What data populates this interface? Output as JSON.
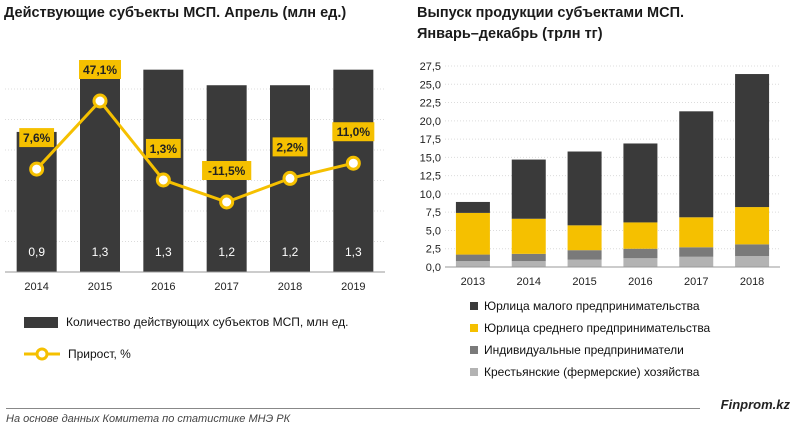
{
  "chart_data": [
    {
      "type": "bar",
      "title": "Действующие субъекты МСП. Апрель (млн ед.)",
      "categories": [
        "2014",
        "2015",
        "2016",
        "2017",
        "2018",
        "2019"
      ],
      "series": [
        {
          "name": "Количество действующих субъектов МСП, млн ед.",
          "type": "bar",
          "values": [
            0.9,
            1.3,
            1.3,
            1.2,
            1.2,
            1.3
          ],
          "labels": [
            "0,9",
            "1,3",
            "1,3",
            "1,2",
            "1,2",
            "1,3"
          ],
          "color": "#3a3a3a"
        },
        {
          "name": "Прирост, %",
          "type": "line",
          "values": [
            7.6,
            47.1,
            1.3,
            -11.5,
            2.2,
            11.0
          ],
          "labels": [
            "7,6%",
            "47,1%",
            "1,3%",
            "-11,5%",
            "2,2%",
            "11,0%"
          ],
          "color": "#f5c000"
        }
      ],
      "grid": true
    },
    {
      "type": "bar",
      "stacked": true,
      "title": "Выпуск продукции субъектами МСП. Январь–декабрь (трлн тг)",
      "categories": [
        "2013",
        "2014",
        "2015",
        "2016",
        "2017",
        "2018"
      ],
      "ylim": [
        0,
        27.5
      ],
      "yticks": [
        "0,0",
        "2,5",
        "5,0",
        "7,5",
        "10,0",
        "12,5",
        "15,0",
        "17,5",
        "20,0",
        "22,5",
        "25,0",
        "27,5"
      ],
      "series": [
        {
          "name": "Крестьянские (фермерские) хозяйства",
          "values": [
            0.8,
            0.8,
            1.0,
            1.2,
            1.4,
            1.5
          ],
          "color": "#b3b3b3"
        },
        {
          "name": "Индивидуальные предприниматели",
          "values": [
            0.9,
            1.0,
            1.3,
            1.3,
            1.3,
            1.6
          ],
          "color": "#7a7a7a"
        },
        {
          "name": "Юрлица среднего предпринимательства",
          "values": [
            5.7,
            4.8,
            3.4,
            3.6,
            4.1,
            5.1
          ],
          "color": "#f5c000"
        },
        {
          "name": "Юрлица малого предпринимательства",
          "values": [
            1.5,
            8.1,
            10.1,
            10.8,
            14.5,
            18.2
          ],
          "color": "#3a3a3a"
        }
      ],
      "legend_order": [
        "Юрлица малого предпринимательства",
        "Юрлица среднего предпринимательства",
        "Индивидуальные предприниматели",
        "Крестьянские (фермерские) хозяйства"
      ],
      "grid": true
    }
  ],
  "footer": {
    "note": "На основе данных  Комитета по статистике МНЭ РК",
    "brand": "Finprom.kz"
  }
}
